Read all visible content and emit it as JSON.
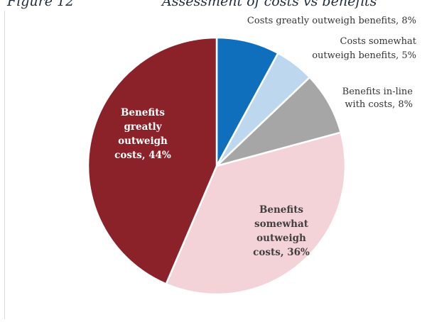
{
  "figure_number": "Figure 12",
  "figure_title": "Assessment of costs vs benefits",
  "chart_data": {
    "type": "pie",
    "title": "Assessment of costs vs benefits",
    "slices": [
      {
        "label_lines": [
          "Costs greatly outweigh benefits, 8%"
        ],
        "value": 8,
        "color": "#0f6fbd",
        "label_color": "#333333",
        "label_position": "outside"
      },
      {
        "label_lines": [
          "Costs somewhat",
          "outweigh benefits, 5%"
        ],
        "value": 5,
        "color": "#bcd7ee",
        "label_color": "#333333",
        "label_position": "outside"
      },
      {
        "label_lines": [
          "Benefits in-line",
          "with costs, 8%"
        ],
        "value": 8,
        "color": "#a6a6a6",
        "label_color": "#333333",
        "label_position": "outside"
      },
      {
        "label_lines": [
          "Benefits",
          "somewhat",
          "outweigh",
          "costs, 36%"
        ],
        "value": 36,
        "color": "#f4d3d8",
        "label_color": "#404040",
        "label_position": "inside"
      },
      {
        "label_lines": [
          "Benefits",
          "greatly",
          "outweigh",
          "costs, 44%"
        ],
        "value": 44,
        "color": "#8b2229",
        "label_color": "#ffffff",
        "label_position": "inside"
      }
    ]
  }
}
